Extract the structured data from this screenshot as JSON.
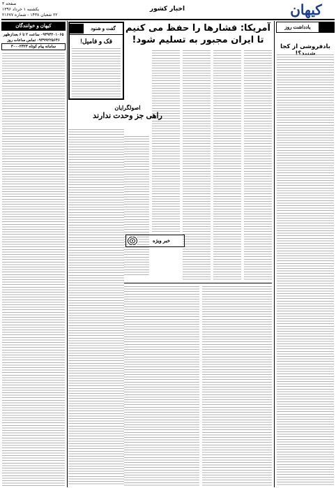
{
  "masthead": {
    "logo": "کیهان",
    "page": "صفحه ۳",
    "date": "یکشنبه ۱ خرداد ۱۳۹۶",
    "issue": "۲۲ شعبان ۱۴۳۸ - شماره ۲۱۶۷۷",
    "section": "اخبار کشور"
  },
  "main_story": {
    "headline_1": "آمریکا: فشارها را حفظ می کنیم",
    "headline_2": "تا ایران مجبور به تسلیم شود!"
  },
  "editorial": {
    "label": "یادداشت روز",
    "title": "بادفروشی از کجا شنید؟!"
  },
  "readers": {
    "label": "کیهان و خوانندگان",
    "phone_1": "۰۹۳۹۳۲۰۱۰۶۵ ساعت ۲ تا ۶ بعدازظهر",
    "phone_2": "۰۹۳۹۹۲۲۵۶۴۶ تماس ساعات روز",
    "sms": "سامانه پیام کوتاه ۳۰۰۰۲۳۲۳"
  },
  "dialogue": {
    "label": "گفت و شنود",
    "title": "فک و فامیل!"
  },
  "story_2": {
    "kicker": "اصولگرایان",
    "headline": "راهی جز وحدت ندارند"
  },
  "special": {
    "label": "خبر ویژه"
  }
}
